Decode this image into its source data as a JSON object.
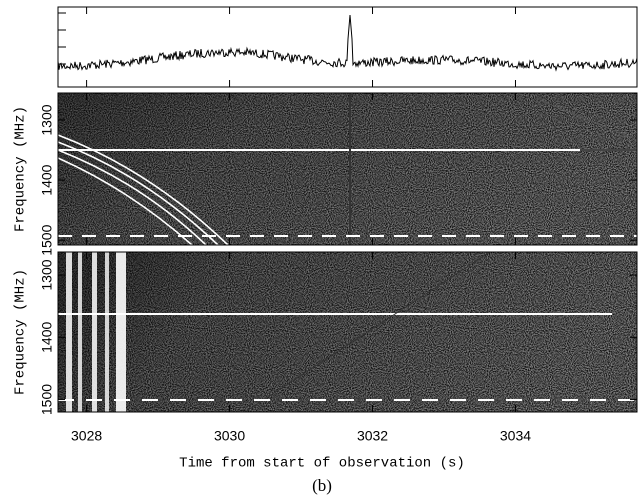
{
  "chart_data": [
    {
      "type": "line",
      "xlim": [
        3027.6,
        3035.7
      ]
    },
    {
      "type": "image",
      "ylabel": "Frequency (MHz)",
      "ylim": [
        1255,
        1508
      ],
      "yticks": [
        1300,
        1400,
        1500
      ],
      "xlim": [
        3027.6,
        3035.7
      ]
    },
    {
      "type": "image",
      "ylabel": "Frequency (MHz)",
      "ylim": [
        1263,
        1520
      ],
      "yticks": [
        1300,
        1400,
        1500
      ],
      "xlim": [
        3027.6,
        3035.7
      ],
      "xticks": [
        3028,
        3030,
        3032,
        3034
      ],
      "xlabel": "Time from start of observation (s)"
    }
  ],
  "caption": "(b)"
}
